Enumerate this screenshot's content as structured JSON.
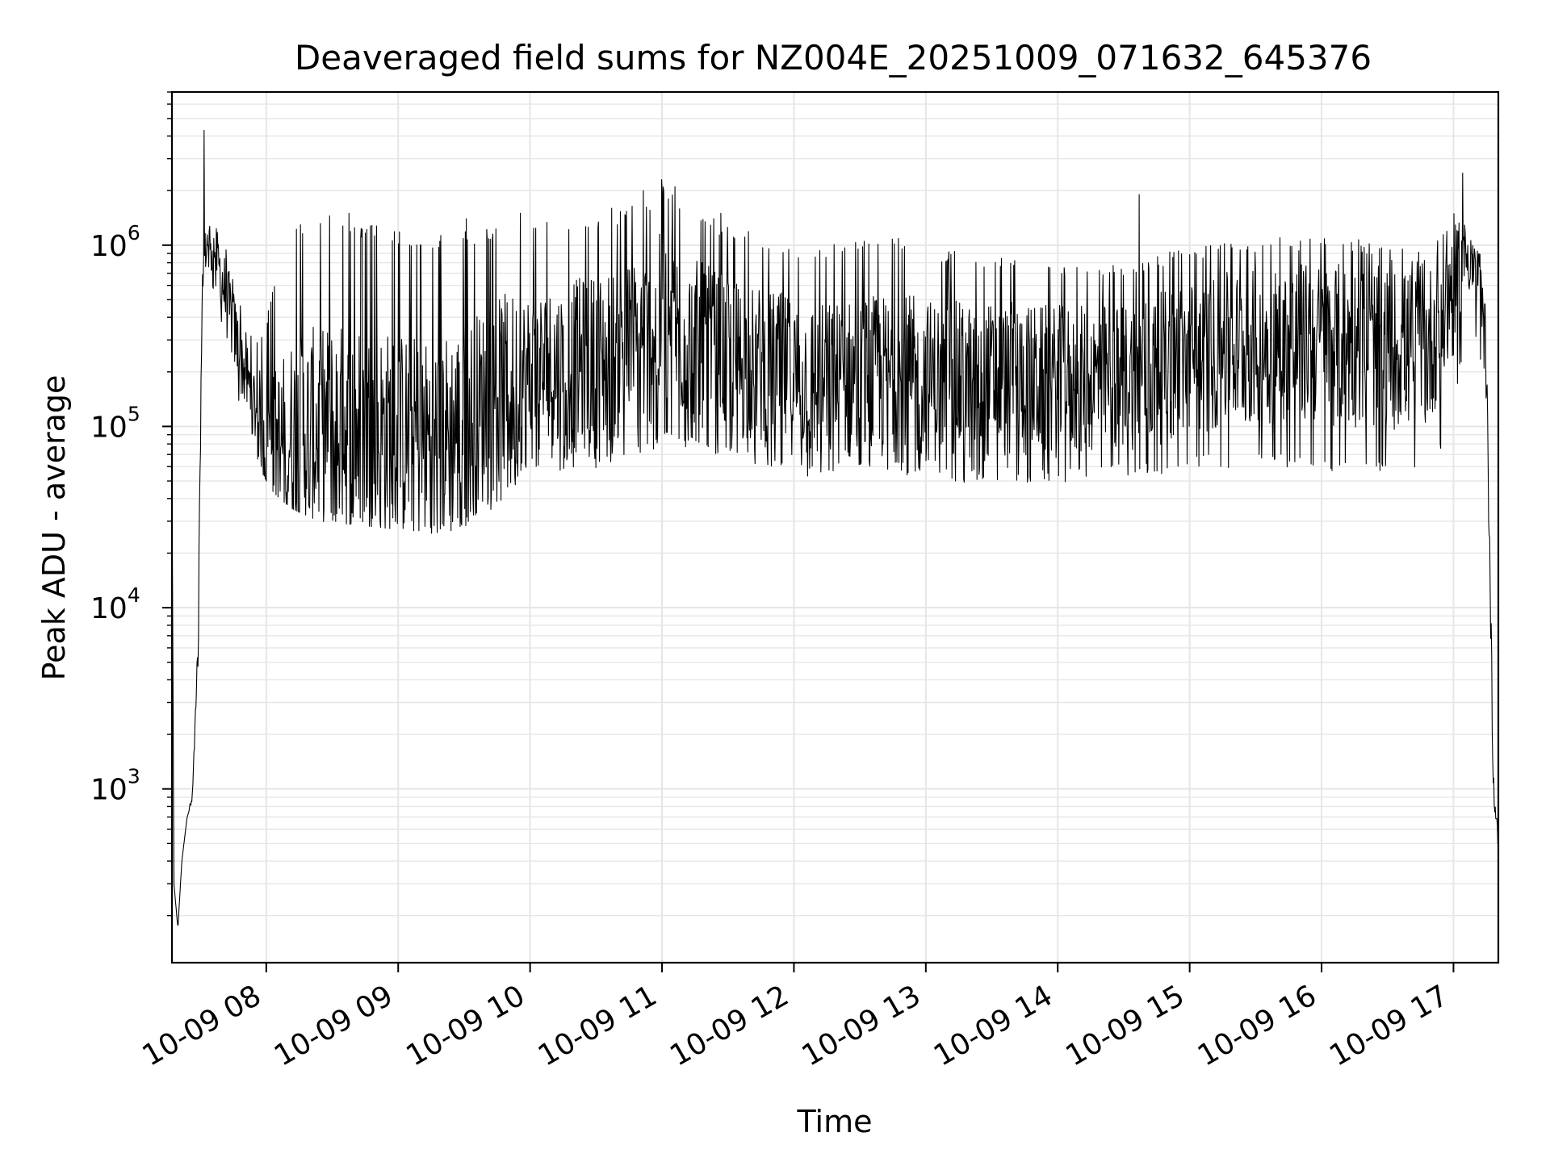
{
  "chart_data": {
    "type": "line",
    "title": "Deaveraged field sums for NZ004E_20251009_071632_645376",
    "xlabel": "Time",
    "ylabel": "Peak ADU - average",
    "yscale": "log",
    "ylim": [
      110,
      7000000
    ],
    "xlim_hours": [
      7.285,
      17.34
    ],
    "x_tick_hours": [
      8,
      9,
      10,
      11,
      12,
      13,
      14,
      15,
      16,
      17
    ],
    "x_tick_labels": [
      "10-09 08",
      "10-09 09",
      "10-09 10",
      "10-09 11",
      "10-09 12",
      "10-09 13",
      "10-09 14",
      "10-09 15",
      "10-09 16",
      "10-09 17"
    ],
    "y_tick_values": [
      1000,
      10000,
      100000,
      1000000
    ],
    "y_tick_labels": [
      {
        "base": "10",
        "exp": "3"
      },
      {
        "base": "10",
        "exp": "4"
      },
      {
        "base": "10",
        "exp": "5"
      },
      {
        "base": "10",
        "exp": "6"
      }
    ],
    "grid": true,
    "line_color": "#000000",
    "grid_color": "#e6e6e6",
    "series": [
      {
        "name": "Peak ADU - average",
        "envelope": {
          "x": [
            7.285,
            7.3,
            7.33,
            7.36,
            7.4,
            7.44,
            7.48,
            7.52,
            7.56,
            7.62,
            7.7,
            7.8,
            7.9,
            8.0,
            8.1,
            8.2,
            8.4,
            8.6,
            8.8,
            9.0,
            9.2,
            9.4,
            9.6,
            9.8,
            10.0,
            10.3,
            10.6,
            10.9,
            11.0,
            11.2,
            11.5,
            11.8,
            12.0,
            12.2,
            12.5,
            12.8,
            13.0,
            13.3,
            13.6,
            13.9,
            14.2,
            14.5,
            14.8,
            15.0,
            15.3,
            15.6,
            15.9,
            16.2,
            16.5,
            16.8,
            17.0,
            17.1,
            17.2,
            17.24,
            17.27,
            17.3,
            17.32,
            17.34
          ],
          "low": [
            60000,
            300,
            170,
            400,
            700,
            800,
            3000,
            500000,
            700000,
            500000,
            240000,
            130000,
            75000,
            48000,
            40000,
            35000,
            30000,
            29000,
            28000,
            27000,
            26000,
            25000,
            30000,
            40000,
            55000,
            58000,
            60000,
            70000,
            80000,
            75000,
            65000,
            60000,
            55000,
            50000,
            52000,
            50000,
            50000,
            48000,
            50000,
            48000,
            50000,
            52000,
            55000,
            60000,
            58000,
            60000,
            58000,
            55000,
            52000,
            50000,
            100000,
            400000,
            250000,
            100000,
            20000,
            1000,
            600,
            400
          ],
          "high": [
            60000,
            300,
            170,
            400,
            700,
            1000,
            8000,
            1200000,
            1500000,
            1300000,
            1000000,
            500000,
            300000,
            400000,
            800000,
            1300000,
            1400000,
            1300000,
            1300000,
            1200000,
            1100000,
            1200000,
            1200000,
            1300000,
            1300000,
            1400000,
            1500000,
            1800000,
            2200000,
            1600000,
            1300000,
            1100000,
            1000000,
            1000000,
            1100000,
            1100000,
            1000000,
            900000,
            900000,
            800000,
            750000,
            800000,
            900000,
            1000000,
            1050000,
            1100000,
            1100000,
            1100000,
            1000000,
            900000,
            1500000,
            1300000,
            900000,
            500000,
            100000,
            1500,
            900,
            600
          ],
          "mid": [
            60000,
            300,
            170,
            400,
            700,
            900,
            5000,
            800000,
            1100000,
            900000,
            500000,
            250000,
            140000,
            90000,
            80000,
            90000,
            95000,
            100000,
            95000,
            90000,
            85000,
            90000,
            120000,
            160000,
            190000,
            210000,
            240000,
            300000,
            380000,
            300000,
            240000,
            210000,
            190000,
            170000,
            180000,
            185000,
            180000,
            175000,
            180000,
            175000,
            180000,
            190000,
            210000,
            240000,
            260000,
            280000,
            290000,
            280000,
            270000,
            260000,
            600000,
            900000,
            600000,
            250000,
            40000,
            1200,
            700,
            500
          ]
        },
        "spikes": [
          {
            "x": 7.53,
            "y": 4300000
          },
          {
            "x": 8.48,
            "y": 1450000
          },
          {
            "x": 8.63,
            "y": 1500000
          },
          {
            "x": 9.52,
            "y": 1400000
          },
          {
            "x": 9.93,
            "y": 1500000
          },
          {
            "x": 10.62,
            "y": 1600000
          },
          {
            "x": 10.86,
            "y": 2000000
          },
          {
            "x": 11.0,
            "y": 2300000
          },
          {
            "x": 11.1,
            "y": 2100000
          },
          {
            "x": 11.45,
            "y": 1500000
          },
          {
            "x": 14.62,
            "y": 1900000
          },
          {
            "x": 17.07,
            "y": 2500000
          }
        ]
      }
    ]
  }
}
